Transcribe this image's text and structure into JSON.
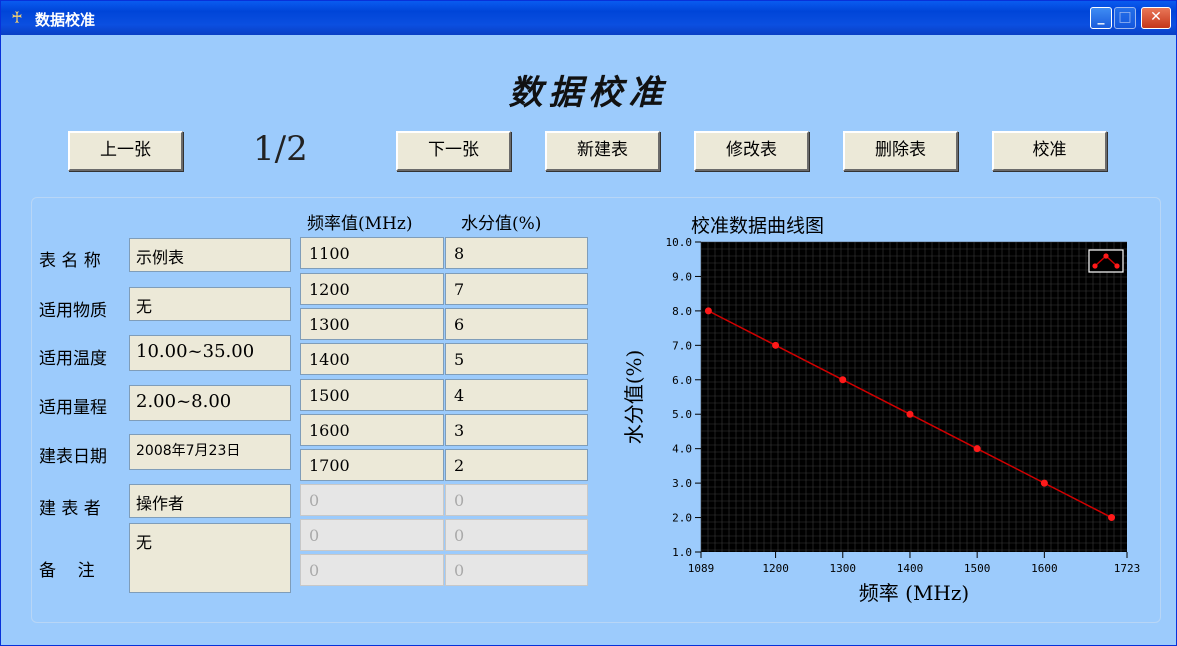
{
  "window": {
    "title": "数据校准",
    "accent": "#0a5bf0",
    "background": "#9ccbfc"
  },
  "heading": "数据校准",
  "toolbar": {
    "prev": "上一张",
    "page": "1/2",
    "next": "下一张",
    "new_table": "新建表",
    "edit_table": "修改表",
    "delete_table": "删除表",
    "calibrate": "校准"
  },
  "form": {
    "table_name": {
      "label": "表 名 称",
      "value": "示例表"
    },
    "material": {
      "label": "适用物质",
      "value": "无"
    },
    "temperature": {
      "label": "适用温度",
      "value": "10.00~35.00"
    },
    "range": {
      "label": "适用量程",
      "value": "2.00~8.00"
    },
    "date": {
      "label": "建表日期",
      "value": "2008年7月23日"
    },
    "author": {
      "label": "建 表 者",
      "value": "操作者"
    },
    "remark": {
      "label": "备    注",
      "value": "无"
    }
  },
  "table": {
    "headers": [
      "频率值(MHz)",
      "水分值(%)"
    ],
    "rows": [
      [
        "1100",
        "8"
      ],
      [
        "1200",
        "7"
      ],
      [
        "1300",
        "6"
      ],
      [
        "1400",
        "5"
      ],
      [
        "1500",
        "4"
      ],
      [
        "1600",
        "3"
      ],
      [
        "1700",
        "2"
      ],
      [
        "0",
        "0"
      ],
      [
        "0",
        "0"
      ],
      [
        "0",
        "0"
      ]
    ]
  },
  "chart_data": {
    "type": "line",
    "title": "校准数据曲线图",
    "xlabel": "频率 (MHz)",
    "ylabel": "水分值(%)",
    "xlim": [
      1089,
      1723
    ],
    "ylim": [
      1.0,
      10.0
    ],
    "x_ticks": [
      "1089",
      "1200",
      "1300",
      "1400",
      "1500",
      "1600",
      "1723"
    ],
    "y_ticks": [
      "1.0",
      "2.0",
      "3.0",
      "4.0",
      "5.0",
      "6.0",
      "7.0",
      "8.0",
      "9.0",
      "10.0"
    ],
    "x": [
      1100,
      1200,
      1300,
      1400,
      1500,
      1600,
      1700
    ],
    "y": [
      8,
      7,
      6,
      5,
      4,
      3,
      2
    ],
    "line_color": "#d00000",
    "background": "#000000",
    "grid": true
  }
}
